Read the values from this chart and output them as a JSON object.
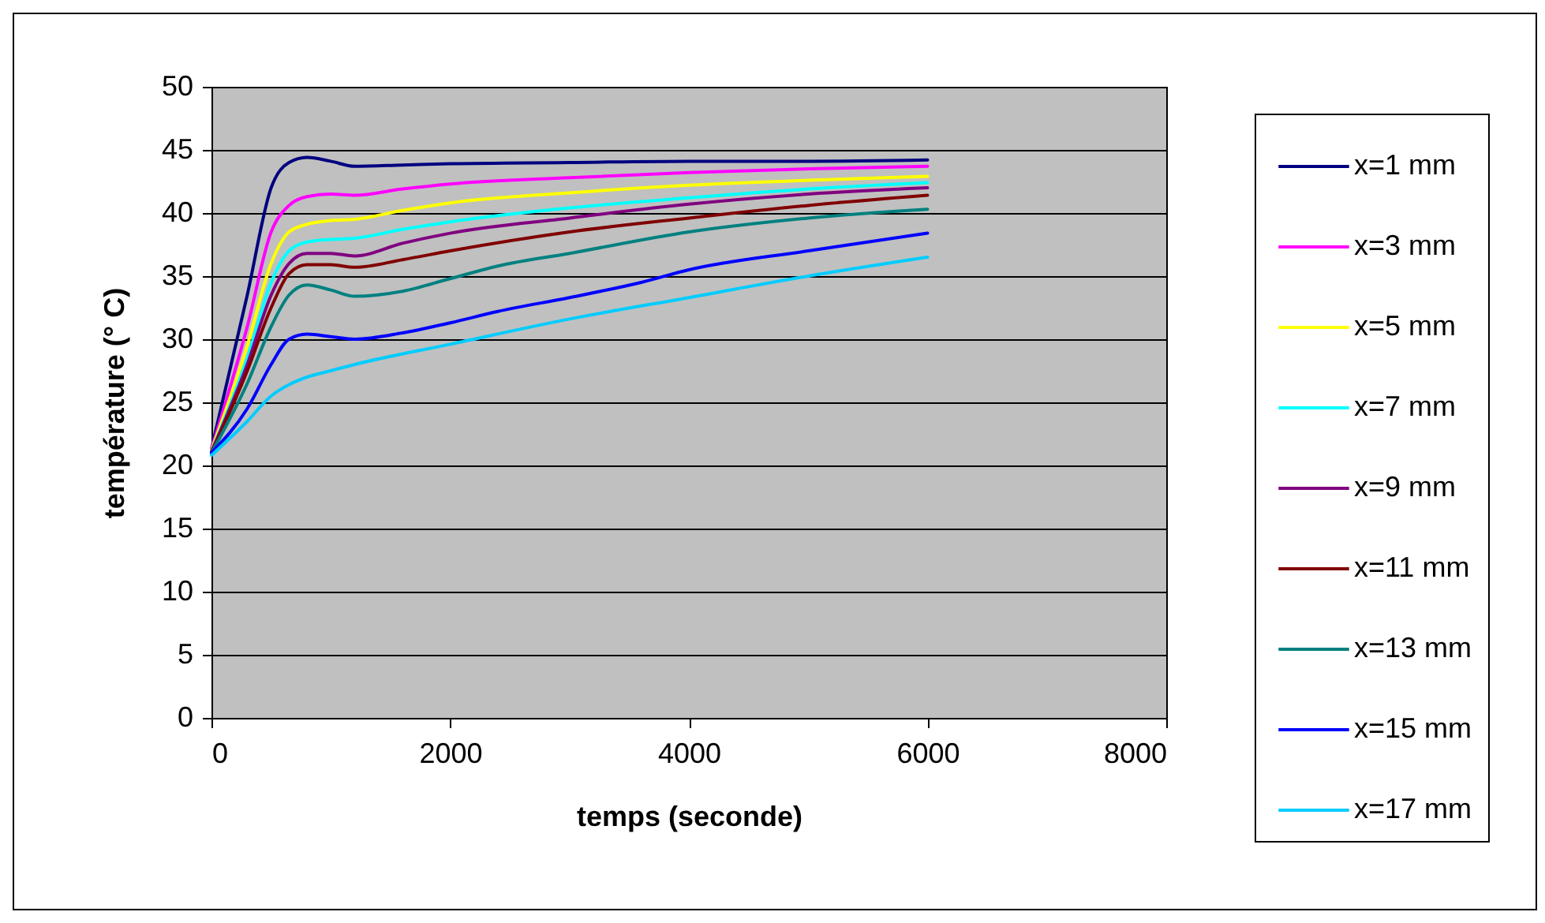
{
  "chart_data": {
    "type": "line",
    "xlabel": "temps (seconde)",
    "ylabel": "température (° C)",
    "xlim": [
      0,
      8000
    ],
    "xticks": [
      0,
      2000,
      4000,
      6000,
      8000
    ],
    "ylim": [
      0,
      50
    ],
    "yticks": [
      0,
      5,
      10,
      15,
      20,
      25,
      30,
      35,
      40,
      45,
      50
    ],
    "grid": "y",
    "legend": "right",
    "marker": "none",
    "line_style": "solid",
    "series": [
      {
        "name": "x=1 mm",
        "color": "#000080",
        "x": [
          0,
          300,
          500,
          650,
          800,
          1000,
          1200,
          1600,
          2000,
          3000,
          4000,
          5000,
          6000
        ],
        "values": [
          21.3,
          33.5,
          42,
          44,
          44.4,
          44.1,
          43.7,
          43.8,
          43.9,
          44.0,
          44.1,
          44.1,
          44.2
        ]
      },
      {
        "name": "x=3 mm",
        "color": "#ff00ff",
        "x": [
          0,
          300,
          500,
          650,
          800,
          1000,
          1200,
          1600,
          2000,
          3000,
          4000,
          5000,
          6000
        ],
        "values": [
          21.3,
          31,
          38.5,
          40.6,
          41.3,
          41.5,
          41.4,
          41.9,
          42.3,
          42.8,
          43.2,
          43.5,
          43.7
        ]
      },
      {
        "name": "x=5 mm",
        "color": "#ffff00",
        "x": [
          0,
          300,
          500,
          650,
          800,
          1000,
          1200,
          1600,
          2000,
          3000,
          4000,
          5000,
          6000
        ],
        "values": [
          21.2,
          29.5,
          36,
          38.5,
          39.1,
          39.4,
          39.5,
          40.2,
          40.8,
          41.6,
          42.2,
          42.6,
          42.9
        ]
      },
      {
        "name": "x=7 mm",
        "color": "#00ffff",
        "x": [
          0,
          300,
          500,
          650,
          800,
          1000,
          1200,
          1600,
          2000,
          3000,
          4000,
          5000,
          6000
        ],
        "values": [
          21.1,
          28.5,
          34.5,
          37,
          37.7,
          37.9,
          38.0,
          38.7,
          39.3,
          40.4,
          41.2,
          41.9,
          42.4
        ]
      },
      {
        "name": "x=9 mm",
        "color": "#800080",
        "x": [
          0,
          300,
          500,
          650,
          800,
          1000,
          1200,
          1600,
          2000,
          3000,
          4000,
          5000,
          6000
        ],
        "values": [
          21.1,
          28,
          33.5,
          36,
          36.8,
          36.8,
          36.6,
          37.6,
          38.4,
          39.6,
          40.7,
          41.5,
          42.0
        ]
      },
      {
        "name": "x=11 mm",
        "color": "#800000",
        "x": [
          0,
          300,
          500,
          650,
          800,
          1000,
          1200,
          1600,
          2000,
          3000,
          4000,
          5000,
          6000
        ],
        "values": [
          21.0,
          27.5,
          32.5,
          35.2,
          35.9,
          35.9,
          35.7,
          36.3,
          37.0,
          38.5,
          39.6,
          40.6,
          41.4
        ]
      },
      {
        "name": "x=13 mm",
        "color": "#008080",
        "x": [
          0,
          300,
          500,
          650,
          800,
          1000,
          1200,
          1600,
          2000,
          2400,
          3000,
          4000,
          5000,
          6000
        ],
        "values": [
          21.0,
          26.5,
          31,
          33.5,
          34.3,
          33.9,
          33.4,
          33.8,
          34.8,
          35.8,
          36.8,
          38.5,
          39.6,
          40.3
        ]
      },
      {
        "name": "x=15 mm",
        "color": "#0000ff",
        "x": [
          0,
          300,
          500,
          650,
          800,
          1000,
          1200,
          1600,
          2000,
          2400,
          3000,
          3600,
          4000,
          5000,
          6000
        ],
        "values": [
          21,
          24.5,
          28,
          30,
          30.4,
          30.2,
          30.0,
          30.5,
          31.3,
          32.2,
          33.3,
          34.5,
          35.5,
          37.0,
          38.4
        ]
      },
      {
        "name": "x=17 mm",
        "color": "#00ccff",
        "x": [
          0,
          300,
          500,
          650,
          800,
          1000,
          1200,
          2000,
          3000,
          4000,
          5000,
          6000
        ],
        "values": [
          20.8,
          23.5,
          25.5,
          26.4,
          27.0,
          27.5,
          28.0,
          29.6,
          31.6,
          33.3,
          35.0,
          36.5
        ]
      }
    ]
  }
}
